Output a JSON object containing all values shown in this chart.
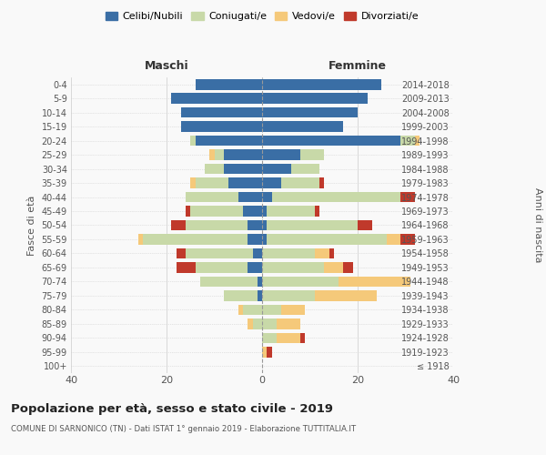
{
  "age_groups": [
    "100+",
    "95-99",
    "90-94",
    "85-89",
    "80-84",
    "75-79",
    "70-74",
    "65-69",
    "60-64",
    "55-59",
    "50-54",
    "45-49",
    "40-44",
    "35-39",
    "30-34",
    "25-29",
    "20-24",
    "15-19",
    "10-14",
    "5-9",
    "0-4"
  ],
  "birth_years": [
    "≤ 1918",
    "1919-1923",
    "1924-1928",
    "1929-1933",
    "1934-1938",
    "1939-1943",
    "1944-1948",
    "1949-1953",
    "1954-1958",
    "1959-1963",
    "1964-1968",
    "1969-1973",
    "1974-1978",
    "1979-1983",
    "1984-1988",
    "1989-1993",
    "1994-1998",
    "1999-2003",
    "2004-2008",
    "2009-2013",
    "2014-2018"
  ],
  "male": {
    "celibi": [
      0,
      0,
      0,
      0,
      0,
      1,
      1,
      3,
      2,
      3,
      3,
      4,
      5,
      7,
      8,
      8,
      14,
      17,
      17,
      19,
      14
    ],
    "coniugati": [
      0,
      0,
      0,
      2,
      4,
      7,
      12,
      11,
      14,
      22,
      13,
      11,
      11,
      7,
      4,
      2,
      1,
      0,
      0,
      0,
      0
    ],
    "vedovi": [
      0,
      0,
      0,
      1,
      1,
      0,
      0,
      0,
      0,
      1,
      0,
      0,
      0,
      1,
      0,
      1,
      0,
      0,
      0,
      0,
      0
    ],
    "divorziati": [
      0,
      0,
      0,
      0,
      0,
      0,
      0,
      4,
      2,
      0,
      3,
      1,
      0,
      0,
      0,
      0,
      0,
      0,
      0,
      0,
      0
    ]
  },
  "female": {
    "nubili": [
      0,
      0,
      0,
      0,
      0,
      0,
      0,
      0,
      0,
      1,
      1,
      1,
      2,
      4,
      6,
      8,
      29,
      17,
      20,
      22,
      25
    ],
    "coniugate": [
      0,
      0,
      3,
      3,
      4,
      11,
      16,
      13,
      11,
      25,
      19,
      10,
      27,
      8,
      6,
      5,
      3,
      0,
      0,
      0,
      0
    ],
    "vedove": [
      0,
      1,
      5,
      5,
      5,
      13,
      15,
      4,
      3,
      3,
      0,
      0,
      0,
      0,
      0,
      0,
      1,
      0,
      0,
      0,
      0
    ],
    "divorziate": [
      0,
      1,
      1,
      0,
      0,
      0,
      0,
      2,
      1,
      3,
      3,
      1,
      3,
      1,
      0,
      0,
      0,
      0,
      0,
      0,
      0
    ]
  },
  "colors": {
    "celibi_nubili": "#3a6ea5",
    "coniugati": "#c8d9a8",
    "vedovi": "#f5c97a",
    "divorziati": "#c0392b"
  },
  "xlim": 40,
  "title": "Popolazione per età, sesso e stato civile - 2019",
  "subtitle": "COMUNE DI SARNONICO (TN) - Dati ISTAT 1° gennaio 2019 - Elaborazione TUTTITALIA.IT",
  "ylabel_left": "Fasce di età",
  "ylabel_right": "Anni di nascita",
  "xlabel_male": "Maschi",
  "xlabel_female": "Femmine",
  "bg_color": "#f9f9f9",
  "grid_color": "#cccccc"
}
